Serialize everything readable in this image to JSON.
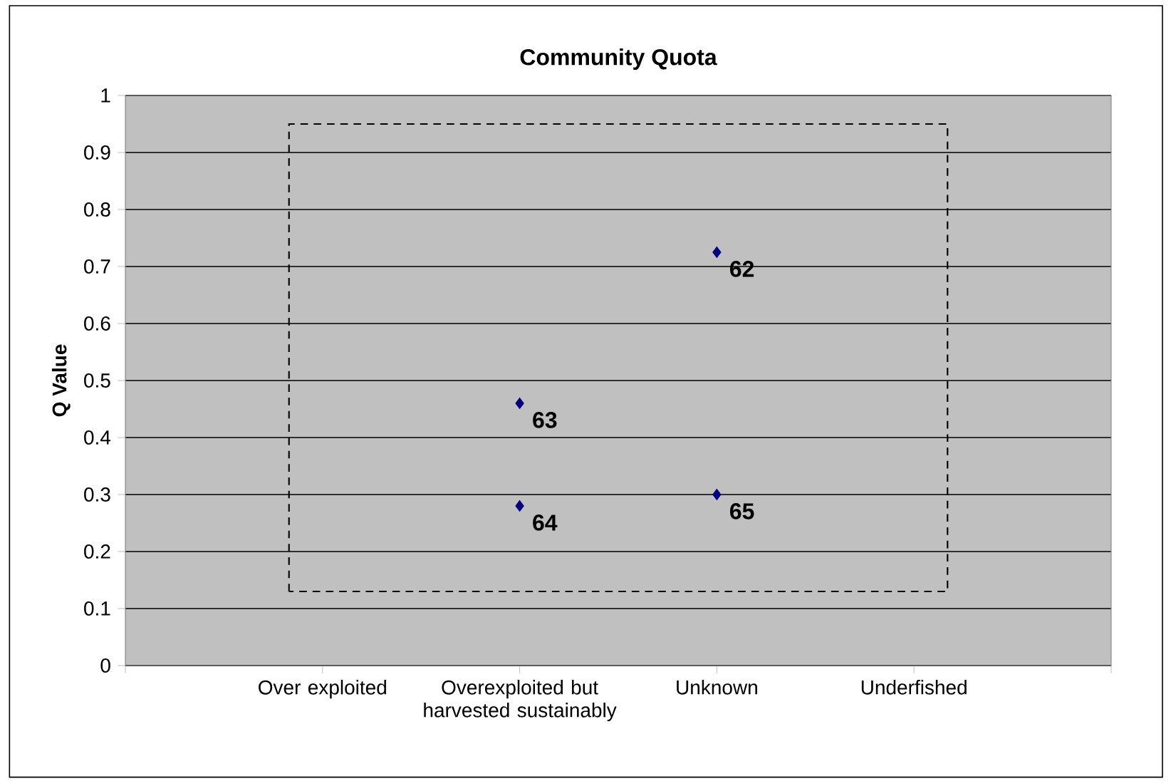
{
  "chart_data": {
    "type": "scatter",
    "title": "Community Quota",
    "ylabel": "Q Value",
    "categories": [
      "Over exploited",
      "Overexploited but harvested sustainably",
      "Unknown",
      "Underfished"
    ],
    "series": [
      {
        "color": "#000080",
        "values": [
          null,
          0.46,
          0.725,
          null
        ]
      },
      {
        "color": "#000080",
        "values": [
          null,
          0.28,
          0.3,
          null
        ]
      }
    ],
    "annotations": [
      {
        "text": "62",
        "x": "Unknown",
        "y": 0.725
      },
      {
        "text": "63",
        "x": "Overexploited but harvested sustainably",
        "y": 0.46
      },
      {
        "text": "64",
        "x": "Overexploited but harvested sustainably",
        "y": 0.28
      },
      {
        "text": "65",
        "x": "Unknown",
        "y": 0.3
      }
    ],
    "ylim": [
      0,
      1
    ],
    "yticks": [
      0,
      0.1,
      0.2,
      0.3,
      0.4,
      0.5,
      0.6,
      0.7,
      0.8,
      0.9,
      1
    ],
    "grid": "y",
    "marker": "diamond"
  }
}
